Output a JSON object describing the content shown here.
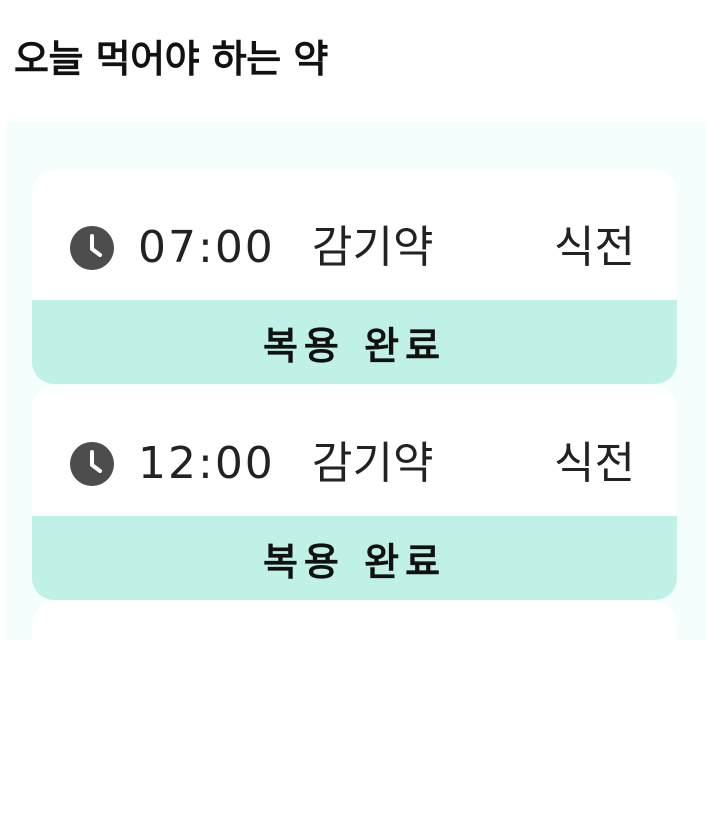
{
  "page": {
    "title": "오늘 먹어야 하는 약"
  },
  "medications": [
    {
      "time": "07:00",
      "name": "감기약",
      "timing": "식전",
      "status_label": "복용 완료"
    },
    {
      "time": "12:00",
      "name": "감기약",
      "timing": "식전",
      "status_label": "복용 완료"
    }
  ],
  "colors": {
    "panel_bg": "#f4fefc",
    "card_bg": "#ffffff",
    "done_bg": "#bff1e7",
    "clock_icon": "#4d4d4d"
  },
  "icons": {
    "time": "clock-icon"
  }
}
